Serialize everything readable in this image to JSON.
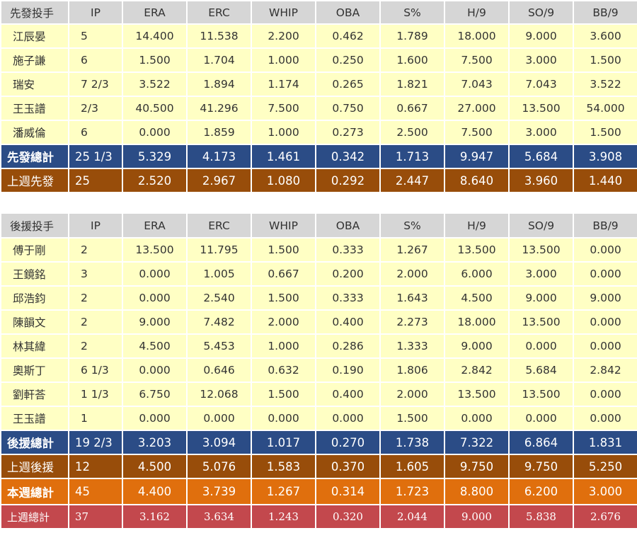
{
  "columns": [
    "IP",
    "ERA",
    "ERC",
    "WHIP",
    "OBA",
    "S%",
    "H/9",
    "SO/9",
    "BB/9"
  ],
  "starters": {
    "header": "先發投手",
    "players": [
      {
        "name": "江辰晏",
        "stats": [
          "5",
          "14.400",
          "11.538",
          "2.200",
          "0.462",
          "1.789",
          "18.000",
          "9.000",
          "3.600"
        ]
      },
      {
        "name": "施子謙",
        "stats": [
          "6",
          "1.500",
          "1.704",
          "1.000",
          "0.250",
          "1.600",
          "7.500",
          "3.000",
          "1.500"
        ]
      },
      {
        "name": "瑞安",
        "stats": [
          "7 2/3",
          "3.522",
          "1.894",
          "1.174",
          "0.265",
          "1.821",
          "7.043",
          "7.043",
          "3.522"
        ]
      },
      {
        "name": "王玉譜",
        "stats": [
          "2/3",
          "40.500",
          "41.296",
          "7.500",
          "0.750",
          "0.667",
          "27.000",
          "13.500",
          "54.000"
        ]
      },
      {
        "name": "潘威倫",
        "stats": [
          "6",
          "0.000",
          "1.859",
          "1.000",
          "0.273",
          "2.500",
          "7.500",
          "3.000",
          "1.500"
        ]
      }
    ],
    "totals": [
      {
        "name": "先發總計",
        "style": "blue",
        "stats": [
          "25 1/3",
          "5.329",
          "4.173",
          "1.461",
          "0.342",
          "1.713",
          "9.947",
          "5.684",
          "3.908"
        ]
      },
      {
        "name": "上週先發",
        "style": "brown",
        "stats": [
          "25",
          "2.520",
          "2.967",
          "1.080",
          "0.292",
          "2.447",
          "8.640",
          "3.960",
          "1.440"
        ]
      }
    ]
  },
  "relievers": {
    "header": "後援投手",
    "players": [
      {
        "name": "傅于剛",
        "stats": [
          "2",
          "13.500",
          "11.795",
          "1.500",
          "0.333",
          "1.267",
          "13.500",
          "13.500",
          "0.000"
        ]
      },
      {
        "name": "王鏡銘",
        "stats": [
          "3",
          "0.000",
          "1.005",
          "0.667",
          "0.200",
          "2.000",
          "6.000",
          "3.000",
          "0.000"
        ]
      },
      {
        "name": "邱浩鈞",
        "stats": [
          "2",
          "0.000",
          "2.540",
          "1.500",
          "0.333",
          "1.643",
          "4.500",
          "9.000",
          "9.000"
        ]
      },
      {
        "name": "陳韻文",
        "stats": [
          "2",
          "9.000",
          "7.482",
          "2.000",
          "0.400",
          "2.273",
          "18.000",
          "13.500",
          "0.000"
        ]
      },
      {
        "name": "林其緯",
        "stats": [
          "2",
          "4.500",
          "5.453",
          "1.000",
          "0.286",
          "1.333",
          "9.000",
          "0.000",
          "0.000"
        ]
      },
      {
        "name": "奧斯丁",
        "stats": [
          "6 1/3",
          "0.000",
          "0.646",
          "0.632",
          "0.190",
          "1.806",
          "2.842",
          "5.684",
          "2.842"
        ]
      },
      {
        "name": "劉軒荅",
        "stats": [
          "1 1/3",
          "6.750",
          "12.068",
          "1.500",
          "0.400",
          "2.000",
          "13.500",
          "13.500",
          "0.000"
        ]
      },
      {
        "name": "王玉譜",
        "stats": [
          "1",
          "0.000",
          "0.000",
          "0.000",
          "0.000",
          "1.500",
          "0.000",
          "0.000",
          "0.000"
        ]
      }
    ],
    "totals": [
      {
        "name": "後援總計",
        "style": "blue",
        "stats": [
          "19 2/3",
          "3.203",
          "3.094",
          "1.017",
          "0.270",
          "1.738",
          "7.322",
          "6.864",
          "1.831"
        ]
      },
      {
        "name": "上週後援",
        "style": "brown",
        "stats": [
          "12",
          "4.500",
          "5.076",
          "1.583",
          "0.370",
          "1.605",
          "9.750",
          "9.750",
          "5.250"
        ]
      },
      {
        "name": "本週總計",
        "style": "orange",
        "stats": [
          "45",
          "4.400",
          "3.739",
          "1.267",
          "0.314",
          "1.723",
          "8.800",
          "6.200",
          "3.000"
        ]
      },
      {
        "name": "上週總計",
        "style": "red",
        "stats": [
          "37",
          "3.162",
          "3.634",
          "1.243",
          "0.320",
          "2.044",
          "9.000",
          "5.838",
          "2.676"
        ]
      }
    ]
  },
  "colors": {
    "player_row": "#ffffc4",
    "header_row": "#d6d6d6",
    "blue_total": "#2b4c86",
    "brown_total": "#984d0a",
    "orange_total": "#e06f0d",
    "red_total": "#c3484d"
  }
}
